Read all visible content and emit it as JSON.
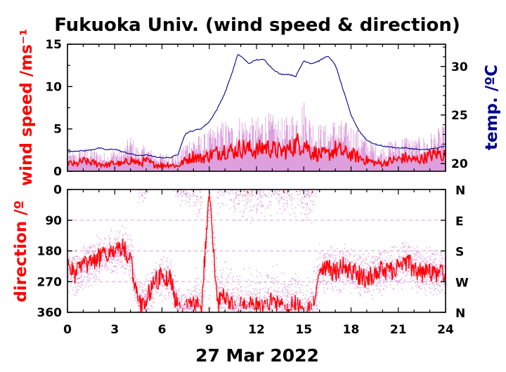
{
  "title": "Fukuoka Univ. (wind speed & direction)",
  "colors": {
    "speed_mean": "#ff0000",
    "speed_gust": "#dda0dd",
    "temperature": "#00008b",
    "direction_mean": "#ff0000",
    "direction_raw": "#dda0dd",
    "frame": "#000000"
  },
  "chart_data": [
    {
      "type": "line",
      "panel": "wind_speed",
      "ylabel": "wind speed /ms⁻¹",
      "y2label": "temp. /ºC",
      "xlim": [
        0,
        24
      ],
      "ylim": [
        0,
        15
      ],
      "y2lim": [
        19.2,
        32.3
      ],
      "yticks": [
        0,
        5,
        10,
        15
      ],
      "y2ticks": [
        20,
        25,
        30
      ],
      "grid": false,
      "series": [
        {
          "role": "wind_speed_mean",
          "color": "#ff0000",
          "x": [
            0,
            0.5,
            1,
            1.5,
            2,
            2.5,
            3,
            3.5,
            4,
            4.5,
            5,
            5.5,
            6,
            6.5,
            7,
            7.5,
            8,
            8.5,
            9,
            9.5,
            10,
            10.5,
            11,
            11.5,
            12,
            12.5,
            13,
            13.5,
            14,
            14.5,
            15,
            15.5,
            16,
            16.5,
            17,
            17.5,
            18,
            18.5,
            19,
            19.5,
            20,
            20.5,
            21,
            21.5,
            22,
            22.5,
            23,
            23.5,
            24
          ],
          "y": [
            1.0,
            0.8,
            1.2,
            1.0,
            0.9,
            0.7,
            1.0,
            0.8,
            1.4,
            0.9,
            1.2,
            0.8,
            0.7,
            0.8,
            0.6,
            1.3,
            1.8,
            1.5,
            1.9,
            2.2,
            2.6,
            2.3,
            2.8,
            2.6,
            2.4,
            2.9,
            2.6,
            2.3,
            2.5,
            3.2,
            3.4,
            2.3,
            2.0,
            1.9,
            2.6,
            2.2,
            2.0,
            1.6,
            1.3,
            1.0,
            0.9,
            1.2,
            1.4,
            1.6,
            1.3,
            1.5,
            1.8,
            2.1,
            1.9
          ]
        },
        {
          "role": "wind_speed_gust",
          "color": "#dda0dd",
          "x": [
            0,
            0.5,
            1,
            1.5,
            2,
            2.5,
            3,
            3.5,
            4,
            4.5,
            5,
            5.5,
            6,
            6.5,
            7,
            7.5,
            8,
            8.5,
            9,
            9.5,
            10,
            10.5,
            11,
            11.5,
            12,
            12.5,
            13,
            13.5,
            14,
            14.5,
            15,
            15.5,
            16,
            16.5,
            17,
            17.5,
            18,
            18.5,
            19,
            19.5,
            20,
            20.5,
            21,
            21.5,
            22,
            22.5,
            23,
            23.5,
            24
          ],
          "y": [
            2.0,
            1.8,
            2.3,
            2.2,
            2.0,
            1.7,
            2.3,
            2.0,
            3.6,
            2.2,
            2.6,
            1.9,
            1.7,
            1.8,
            1.6,
            3.0,
            3.6,
            3.4,
            4.0,
            4.5,
            5.0,
            4.6,
            5.5,
            5.2,
            5.0,
            5.8,
            5.4,
            5.0,
            5.2,
            6.2,
            7.0,
            5.2,
            4.6,
            4.4,
            5.2,
            4.8,
            4.6,
            4.0,
            3.3,
            2.7,
            2.4,
            3.0,
            3.2,
            3.6,
            3.1,
            3.3,
            3.7,
            4.1,
            4.4
          ]
        },
        {
          "role": "temperature",
          "axis": "right",
          "color": "#00008b",
          "x": [
            0,
            0.5,
            1,
            1.5,
            2,
            2.5,
            3,
            3.5,
            4,
            4.5,
            5,
            5.5,
            6,
            6.5,
            7,
            7.25,
            7.5,
            8,
            8.5,
            9,
            9.5,
            10,
            10.5,
            10.8,
            11,
            11.5,
            12,
            12.5,
            13,
            13.5,
            14,
            14.5,
            15,
            15.5,
            16,
            16.5,
            17,
            17.5,
            18,
            18.5,
            19,
            19.5,
            20,
            20.5,
            21,
            21.5,
            22,
            22.5,
            23,
            23.5,
            24
          ],
          "y": [
            21.2,
            21.3,
            21.3,
            21.4,
            21.6,
            21.4,
            21.5,
            21.2,
            21.0,
            20.8,
            20.9,
            20.7,
            20.6,
            20.6,
            20.9,
            22.1,
            23.1,
            23.4,
            23.6,
            24.3,
            25.6,
            27.3,
            29.6,
            31.2,
            31.1,
            30.3,
            30.7,
            30.7,
            29.8,
            29.2,
            29.2,
            29.0,
            30.6,
            30.3,
            30.6,
            31.1,
            30.2,
            27.6,
            25.0,
            23.4,
            22.4,
            22.0,
            21.8,
            21.7,
            21.6,
            21.6,
            21.5,
            21.4,
            21.5,
            21.6,
            21.8
          ]
        }
      ]
    },
    {
      "type": "scatter",
      "panel": "wind_direction",
      "ylabel": "direction /º",
      "xlim": [
        0,
        24
      ],
      "ylim": [
        360,
        0
      ],
      "yticks": [
        0,
        90,
        180,
        270,
        360
      ],
      "y2ticklabels": [
        "N",
        "E",
        "S",
        "W",
        "N"
      ],
      "xticks": [
        0,
        3,
        6,
        9,
        12,
        15,
        18,
        21,
        24
      ],
      "xlabel": "27 Mar 2022",
      "grid": "dashed horizontal at 90, 180, 270",
      "series": [
        {
          "role": "direction_mean",
          "color": "#ff0000",
          "x": [
            0,
            0.5,
            1,
            1.5,
            2,
            2.5,
            3,
            3.5,
            4,
            4.5,
            5,
            5.5,
            6,
            6.5,
            7,
            7.5,
            8,
            8.5,
            9,
            9.5,
            10,
            10.5,
            11,
            11.5,
            12,
            12.5,
            13,
            13.5,
            14,
            14.5,
            15,
            15.5,
            16,
            16.5,
            17,
            17.5,
            18,
            18.5,
            19,
            19.5,
            20,
            20.5,
            21,
            21.5,
            22,
            22.5,
            23,
            23.5,
            24
          ],
          "y": [
            230,
            250,
            225,
            215,
            200,
            185,
            190,
            170,
            205,
            340,
            325,
            270,
            255,
            260,
            345,
            350,
            340,
            345,
            10,
            335,
            310,
            350,
            340,
            345,
            340,
            345,
            330,
            340,
            345,
            335,
            355,
            350,
            250,
            230,
            245,
            225,
            240,
            250,
            260,
            245,
            235,
            240,
            225,
            215,
            230,
            245,
            240,
            250,
            245
          ]
        },
        {
          "role": "direction_raw",
          "color": "#dda0dd",
          "description_only": false,
          "x": [
            0,
            1,
            2,
            3,
            4,
            5,
            6,
            7,
            8,
            9,
            10,
            11,
            12,
            13,
            14,
            15,
            16,
            17,
            18,
            19,
            20,
            21,
            22,
            23,
            24
          ],
          "y": [
            230,
            220,
            200,
            190,
            210,
            320,
            260,
            345,
            340,
            350,
            320,
            340,
            345,
            335,
            340,
            350,
            245,
            235,
            245,
            245,
            240,
            225,
            235,
            240,
            245
          ]
        }
      ]
    }
  ]
}
